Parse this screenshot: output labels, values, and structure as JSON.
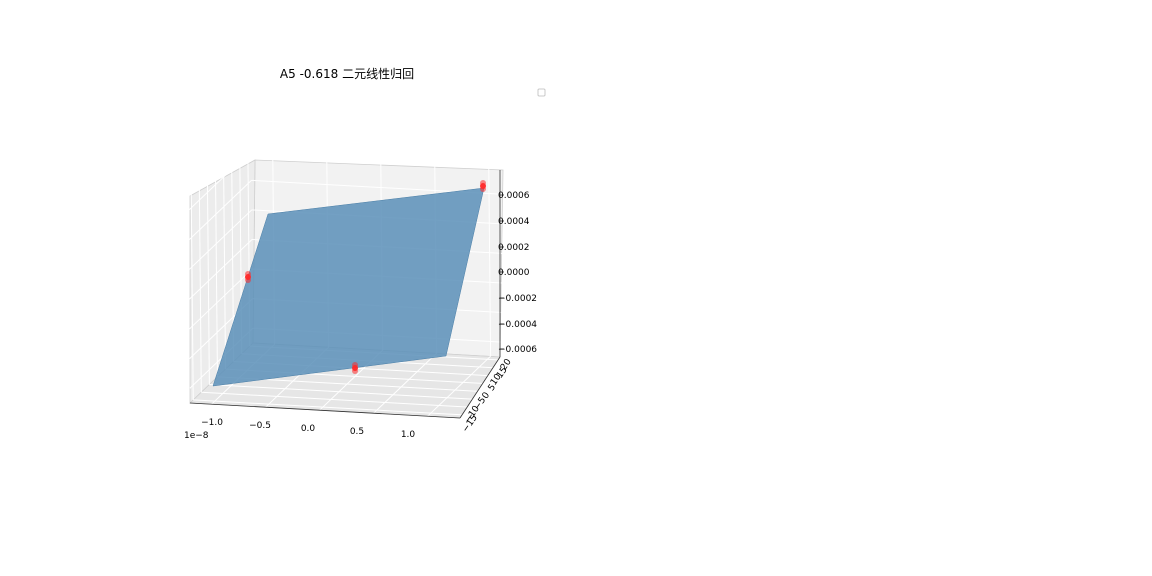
{
  "chart_data": {
    "type": "surface3d",
    "title": "A5 -0.618 二元线性归回",
    "legend": {
      "placement": "upper-right",
      "entries": []
    },
    "x_axis": {
      "ticks": [
        "−1.0",
        "−0.5",
        "0.0",
        "0.5",
        "1.0"
      ],
      "offset_text": "1e−8",
      "range": [
        -1.2,
        1.3
      ]
    },
    "y_axis": {
      "ticks": [
        "−15",
        "−10",
        "−5",
        "0",
        "5",
        "10",
        "15",
        "20"
      ],
      "range": [
        -17,
        22
      ]
    },
    "z_axis": {
      "ticks": [
        "−0.0006",
        "−0.0004",
        "−0.0002",
        "0.0000",
        "0.0002",
        "0.0004",
        "0.0006"
      ],
      "range": [
        -0.0007,
        0.0007
      ]
    },
    "surface": {
      "color": "#5b8fb9",
      "alpha": 0.85
    },
    "scatter": {
      "color": "#ff2a2a",
      "points": [
        {
          "x": -1.2,
          "y": -15,
          "z": 0.0
        },
        {
          "x": 0.5,
          "y": -15,
          "z": -0.0006
        },
        {
          "x": 1.3,
          "y": 20,
          "z": 0.00065
        }
      ]
    },
    "grid": true
  }
}
